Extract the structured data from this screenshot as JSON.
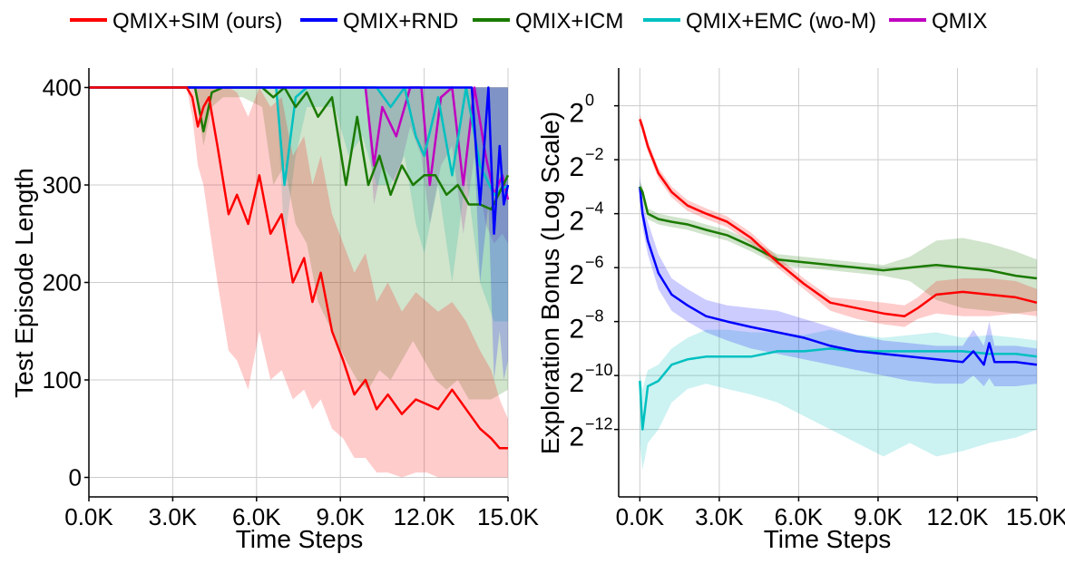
{
  "legend": [
    {
      "name": "QMIX+SIM (ours)",
      "color": "#ff0000"
    },
    {
      "name": "QMIX+RND",
      "color": "#0000ff"
    },
    {
      "name": "QMIX+ICM",
      "color": "#1a7a00"
    },
    {
      "name": "QMIX+EMC (wo-M)",
      "color": "#00c0c0"
    },
    {
      "name": "QMIX",
      "color": "#c000c0"
    }
  ],
  "chart_data": [
    {
      "type": "line",
      "xlabel": "Time Steps",
      "ylabel": "Test Episode Length",
      "xlim": [
        0,
        15000
      ],
      "ylim": [
        -20,
        420
      ],
      "x_ticks": [
        0,
        3000,
        6000,
        9000,
        12000,
        15000
      ],
      "x_tick_labels": [
        "0.0K",
        "3.0K",
        "6.0K",
        "9.0K",
        "12.0K",
        "15.0K"
      ],
      "y_ticks": [
        0,
        100,
        200,
        300,
        400
      ],
      "y_tick_labels": [
        "0",
        "100",
        "200",
        "300",
        "400"
      ],
      "grid": true,
      "series": [
        {
          "name": "QMIX",
          "color": "#c000c0",
          "x": [
            0,
            3500,
            9900,
            10200,
            10500,
            11000,
            11500,
            11900,
            12200,
            12600,
            13000,
            13400,
            13800,
            14200,
            14500,
            14800,
            15000
          ],
          "y": [
            400,
            400,
            400,
            320,
            380,
            350,
            400,
            400,
            300,
            390,
            400,
            300,
            400,
            330,
            290,
            310,
            285
          ],
          "lower": [
            400,
            400,
            400,
            280,
            320,
            300,
            360,
            330,
            260,
            320,
            340,
            250,
            330,
            260,
            240,
            250,
            240
          ],
          "upper": [
            400,
            400,
            400,
            400,
            400,
            400,
            400,
            400,
            400,
            400,
            400,
            400,
            400,
            400,
            400,
            400,
            400
          ]
        },
        {
          "name": "QMIX+EMC (wo-M)",
          "color": "#00c0c0",
          "x": [
            0,
            4200,
            6700,
            7000,
            7400,
            7800,
            8300,
            8800,
            9300,
            9800,
            10300,
            10800,
            11300,
            11700,
            12000,
            12500,
            13000,
            13500,
            14000,
            14500,
            15000
          ],
          "y": [
            400,
            400,
            400,
            300,
            390,
            400,
            400,
            400,
            400,
            400,
            400,
            380,
            400,
            350,
            330,
            390,
            310,
            400,
            320,
            290,
            300
          ],
          "lower": [
            400,
            400,
            400,
            240,
            330,
            380,
            380,
            380,
            330,
            350,
            300,
            300,
            330,
            260,
            230,
            300,
            200,
            310,
            200,
            160,
            160
          ],
          "upper": [
            400,
            400,
            400,
            400,
            400,
            400,
            400,
            400,
            400,
            400,
            400,
            400,
            400,
            400,
            400,
            400,
            400,
            400,
            400,
            400,
            400
          ]
        },
        {
          "name": "QMIX+ICM",
          "color": "#1a7a00",
          "x": [
            0,
            3800,
            4100,
            4400,
            4800,
            5500,
            6200,
            6600,
            7000,
            7400,
            7800,
            8200,
            8700,
            9200,
            9600,
            10000,
            10400,
            10800,
            11200,
            11600,
            12000,
            12400,
            12800,
            13200,
            13600,
            14000,
            14400,
            15000
          ],
          "y": [
            400,
            400,
            355,
            395,
            400,
            400,
            400,
            390,
            400,
            380,
            395,
            370,
            390,
            300,
            370,
            300,
            330,
            290,
            320,
            300,
            310,
            310,
            290,
            300,
            280,
            280,
            275,
            310
          ],
          "lower": [
            400,
            400,
            340,
            380,
            390,
            390,
            380,
            300,
            320,
            260,
            240,
            180,
            150,
            120,
            100,
            90,
            110,
            100,
            120,
            140,
            120,
            100,
            90,
            100,
            80,
            80,
            80,
            90
          ],
          "upper": [
            400,
            400,
            400,
            400,
            400,
            400,
            400,
            400,
            400,
            400,
            400,
            400,
            400,
            400,
            400,
            400,
            400,
            400,
            400,
            400,
            400,
            400,
            400,
            400,
            400,
            400,
            400,
            400
          ]
        },
        {
          "name": "QMIX+RND",
          "color": "#0000ff",
          "x": [
            0,
            13700,
            14000,
            14300,
            14500,
            14700,
            14850,
            15000
          ],
          "y": [
            400,
            400,
            280,
            400,
            250,
            340,
            280,
            300
          ],
          "lower": [
            400,
            400,
            200,
            280,
            100,
            150,
            100,
            120
          ],
          "upper": [
            400,
            400,
            400,
            400,
            400,
            400,
            400,
            400
          ]
        },
        {
          "name": "QMIX+SIM (ours)",
          "color": "#ff0000",
          "x": [
            0,
            3500,
            3700,
            3900,
            4100,
            4300,
            4600,
            5000,
            5300,
            5700,
            6100,
            6500,
            6900,
            7300,
            7700,
            8000,
            8300,
            8700,
            9100,
            9500,
            9900,
            10300,
            10700,
            11200,
            11700,
            12100,
            12500,
            13000,
            13500,
            14000,
            14400,
            14700,
            15000
          ],
          "y": [
            400,
            400,
            390,
            360,
            380,
            390,
            340,
            270,
            290,
            260,
            310,
            250,
            270,
            200,
            225,
            180,
            210,
            150,
            120,
            85,
            100,
            70,
            85,
            65,
            80,
            75,
            70,
            90,
            70,
            50,
            40,
            30,
            30
          ],
          "lower": [
            400,
            400,
            370,
            320,
            300,
            260,
            200,
            130,
            120,
            90,
            150,
            100,
            110,
            80,
            90,
            70,
            80,
            50,
            40,
            20,
            20,
            5,
            5,
            0,
            5,
            5,
            0,
            0,
            0,
            0,
            0,
            0,
            0
          ],
          "upper": [
            400,
            400,
            400,
            400,
            400,
            400,
            400,
            400,
            395,
            370,
            400,
            380,
            390,
            330,
            350,
            300,
            330,
            270,
            240,
            210,
            230,
            180,
            200,
            170,
            190,
            180,
            170,
            180,
            160,
            130,
            110,
            80,
            60
          ]
        }
      ]
    },
    {
      "type": "line",
      "xlabel": "Time Steps",
      "ylabel": "Exploration Bonus (Log Scale)",
      "y_scale": "log2",
      "xlim": [
        -800,
        15000
      ],
      "ylim": [
        -14.5,
        1.4
      ],
      "x_ticks": [
        0,
        3000,
        6000,
        9000,
        12000,
        15000
      ],
      "x_tick_labels": [
        "0.0K",
        "3.0K",
        "6.0K",
        "9.0K",
        "12.0K",
        "15.0K"
      ],
      "y_ticks": [
        0,
        -2,
        -4,
        -6,
        -8,
        -10,
        -12
      ],
      "y_tick_labels": [
        {
          "base": "2",
          "exp": "0"
        },
        {
          "base": "2",
          "exp": "−2"
        },
        {
          "base": "2",
          "exp": "−4"
        },
        {
          "base": "2",
          "exp": "−6"
        },
        {
          "base": "2",
          "exp": "−8"
        },
        {
          "base": "2",
          "exp": "−10"
        },
        {
          "base": "2",
          "exp": "−12"
        }
      ],
      "grid": true,
      "series": [
        {
          "name": "QMIX+EMC (wo-M)",
          "color": "#00c0c0",
          "x": [
            0,
            100,
            300,
            700,
            1200,
            1800,
            2500,
            3300,
            4200,
            5200,
            6200,
            7200,
            8200,
            9200,
            10200,
            11200,
            12200,
            13200,
            14200,
            15000
          ],
          "log2_y": [
            -10.2,
            -12.0,
            -10.4,
            -10.2,
            -9.6,
            -9.4,
            -9.3,
            -9.3,
            -9.3,
            -9.1,
            -9.1,
            -9.0,
            -9.1,
            -9.1,
            -9.1,
            -9.1,
            -9.1,
            -9.2,
            -9.2,
            -9.3
          ],
          "log2_lower": [
            -12.5,
            -13.5,
            -12.5,
            -12.0,
            -11.0,
            -10.5,
            -10.3,
            -10.5,
            -10.7,
            -11.0,
            -11.5,
            -12.0,
            -12.5,
            -13.0,
            -12.5,
            -13.0,
            -12.8,
            -12.5,
            -12.3,
            -12.0
          ],
          "log2_upper": [
            -9.8,
            -10.5,
            -9.8,
            -9.6,
            -9.0,
            -8.6,
            -8.3,
            -8.3,
            -8.4,
            -8.4,
            -8.5,
            -8.3,
            -8.5,
            -8.6,
            -8.5,
            -8.4,
            -8.6,
            -8.5,
            -8.6,
            -8.7
          ]
        },
        {
          "name": "QMIX+RND",
          "color": "#0000ff",
          "x": [
            0,
            100,
            300,
            700,
            1200,
            1800,
            2500,
            3300,
            4200,
            5200,
            6200,
            7200,
            8200,
            9200,
            10200,
            11200,
            12200,
            12600,
            13000,
            13200,
            13400,
            14200,
            15000
          ],
          "log2_y": [
            -3.0,
            -4.0,
            -5.0,
            -6.2,
            -7.0,
            -7.4,
            -7.8,
            -8.0,
            -8.2,
            -8.4,
            -8.6,
            -8.9,
            -9.1,
            -9.2,
            -9.3,
            -9.4,
            -9.5,
            -9.1,
            -9.6,
            -8.8,
            -9.5,
            -9.5,
            -9.6
          ],
          "log2_lower": [
            -3.5,
            -4.5,
            -5.5,
            -6.8,
            -7.6,
            -8.0,
            -8.4,
            -8.7,
            -9.0,
            -9.2,
            -9.4,
            -9.6,
            -9.8,
            -10.0,
            -10.2,
            -10.3,
            -10.3,
            -10.0,
            -10.4,
            -10.1,
            -10.4,
            -10.4,
            -10.3
          ],
          "log2_upper": [
            -2.6,
            -3.5,
            -4.3,
            -5.5,
            -6.4,
            -6.8,
            -7.2,
            -7.4,
            -7.5,
            -7.6,
            -7.9,
            -8.2,
            -8.5,
            -8.7,
            -8.8,
            -8.9,
            -8.9,
            -8.3,
            -8.9,
            -8.0,
            -8.9,
            -8.9,
            -9.0
          ]
        },
        {
          "name": "QMIX+ICM",
          "color": "#1a7a00",
          "x": [
            0,
            100,
            300,
            700,
            1200,
            1800,
            2500,
            3300,
            4200,
            5200,
            6200,
            7200,
            8200,
            9200,
            10200,
            11200,
            12200,
            13200,
            14200,
            15000
          ],
          "log2_y": [
            -3.0,
            -3.2,
            -4.0,
            -4.2,
            -4.3,
            -4.4,
            -4.6,
            -4.8,
            -5.2,
            -5.7,
            -5.8,
            -5.9,
            -6.0,
            -6.1,
            -6.0,
            -5.9,
            -6.0,
            -6.1,
            -6.3,
            -6.4
          ],
          "log2_lower": [
            -3.2,
            -3.5,
            -4.2,
            -4.4,
            -4.5,
            -4.6,
            -4.8,
            -5.0,
            -5.4,
            -5.9,
            -6.0,
            -6.1,
            -6.2,
            -6.3,
            -6.5,
            -7.2,
            -7.5,
            -7.6,
            -7.7,
            -7.6
          ],
          "log2_upper": [
            -2.8,
            -3.0,
            -3.8,
            -4.0,
            -4.1,
            -4.2,
            -4.4,
            -4.6,
            -5.0,
            -5.5,
            -5.6,
            -5.7,
            -5.8,
            -5.9,
            -5.6,
            -5.0,
            -4.9,
            -5.1,
            -5.4,
            -5.7
          ]
        },
        {
          "name": "QMIX+SIM (ours)",
          "color": "#ff0000",
          "x": [
            0,
            100,
            300,
            700,
            1200,
            1800,
            2500,
            3300,
            4200,
            5200,
            6200,
            7200,
            8200,
            9200,
            10000,
            10500,
            11200,
            12200,
            13200,
            14200,
            15000
          ],
          "log2_y": [
            -0.5,
            -0.8,
            -1.5,
            -2.5,
            -3.2,
            -3.7,
            -4.0,
            -4.3,
            -4.9,
            -5.8,
            -6.6,
            -7.3,
            -7.5,
            -7.7,
            -7.8,
            -7.5,
            -7.0,
            -6.9,
            -7.0,
            -7.1,
            -7.3
          ],
          "log2_lower": [
            -0.7,
            -1.0,
            -1.7,
            -2.7,
            -3.4,
            -3.9,
            -4.2,
            -4.5,
            -5.1,
            -6.0,
            -6.8,
            -7.6,
            -7.9,
            -8.1,
            -8.2,
            -7.9,
            -7.7,
            -7.8,
            -7.8,
            -7.7,
            -7.8
          ],
          "log2_upper": [
            -0.3,
            -0.6,
            -1.3,
            -2.3,
            -3.0,
            -3.5,
            -3.8,
            -4.1,
            -4.7,
            -5.6,
            -6.4,
            -7.1,
            -7.2,
            -7.3,
            -7.4,
            -7.1,
            -6.5,
            -6.4,
            -6.4,
            -6.5,
            -6.8
          ]
        }
      ]
    }
  ]
}
